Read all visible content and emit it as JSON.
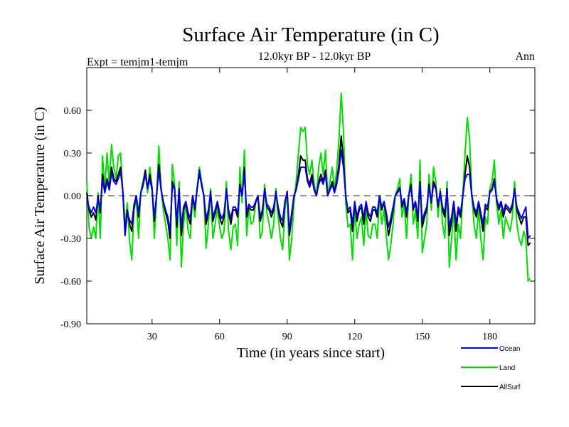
{
  "chart_data": {
    "type": "line",
    "title": "Surface Air Temperature (in C)",
    "subtitle_left": "Expt = temjm1-temjm",
    "subtitle_center": "12.0kyr BP - 12.0kyr BP",
    "subtitle_right": "Ann",
    "xlabel": "Time (in years since start)",
    "ylabel": "Surface Air Temperature (in C)",
    "xlim": [
      1,
      200
    ],
    "ylim": [
      -0.9,
      0.9
    ],
    "xticks": [
      30,
      60,
      90,
      120,
      150,
      180
    ],
    "xtick_labels": [
      "30",
      "60",
      "90",
      "120",
      "150",
      "180"
    ],
    "yticks": [
      -0.9,
      -0.6,
      -0.3,
      0.0,
      0.3,
      0.6
    ],
    "ytick_labels": [
      "-0.90",
      "-0.60",
      "-0.30",
      "0.00",
      "0.30",
      "0.60"
    ],
    "reference_line": 0.0,
    "legend_position": "bottom-right",
    "x_step": 1,
    "series": [
      {
        "name": "Land",
        "color": "#00dd00",
        "values": [
          0.1,
          -0.22,
          -0.3,
          -0.22,
          -0.3,
          0.02,
          -0.3,
          0.28,
          0.05,
          0.3,
          0.08,
          0.36,
          0.2,
          0.12,
          0.28,
          0.3,
          0.02,
          -0.2,
          -0.05,
          -0.32,
          -0.45,
          -0.1,
          -0.02,
          -0.3,
          0.03,
          0.1,
          0.18,
          0.02,
          0.2,
          0.06,
          -0.3,
          -0.02,
          0.35,
          0.05,
          -0.1,
          -0.2,
          -0.3,
          -0.45,
          0.22,
          0.08,
          -0.35,
          0.1,
          -0.5,
          -0.2,
          -0.05,
          -0.25,
          -0.3,
          0.0,
          -0.15,
          0.05,
          0.2,
          0.1,
          0.0,
          -0.37,
          -0.2,
          0.05,
          -0.3,
          -0.2,
          -0.08,
          -0.22,
          -0.3,
          -0.25,
          0.1,
          -0.25,
          -0.38,
          -0.22,
          -0.2,
          -0.35,
          0.2,
          -0.05,
          0.32,
          -0.28,
          -0.08,
          -0.2,
          -0.18,
          -0.05,
          0.0,
          -0.3,
          -0.25,
          0.08,
          -0.12,
          -0.2,
          -0.3,
          -0.2,
          0.05,
          -0.15,
          -0.3,
          -0.38,
          -0.1,
          0.02,
          -0.45,
          -0.3,
          -0.05,
          0.1,
          0.3,
          0.48,
          0.45,
          0.48,
          0.22,
          0.15,
          0.25,
          0.08,
          0.0,
          0.2,
          0.3,
          0.15,
          0.32,
          0.0,
          0.1,
          0.2,
          0.05,
          0.18,
          0.4,
          0.72,
          0.45,
          -0.05,
          -0.22,
          -0.2,
          -0.45,
          -0.1,
          -0.3,
          -0.2,
          -0.15,
          -0.35,
          -0.1,
          -0.28,
          -0.3,
          -0.2,
          -0.2,
          -0.3,
          0.0,
          -0.2,
          -0.1,
          -0.28,
          -0.45,
          -0.35,
          -0.2,
          0.0,
          0.05,
          0.12,
          -0.15,
          -0.05,
          -0.3,
          0.0,
          0.15,
          -0.2,
          -0.1,
          -0.3,
          0.25,
          -0.4,
          -0.3,
          -0.2,
          0.15,
          -0.1,
          0.2,
          0.1,
          -0.15,
          0.05,
          -0.2,
          -0.3,
          0.1,
          -0.5,
          -0.3,
          -0.1,
          -0.45,
          -0.2,
          -0.3,
          0.0,
          0.3,
          0.55,
          0.4,
          0.0,
          -0.2,
          -0.3,
          -0.1,
          -0.3,
          -0.45,
          -0.15,
          -0.2,
          0.05,
          0.1,
          0.25,
          -0.05,
          -0.2,
          -0.1,
          -0.3,
          -0.15,
          -0.2,
          -0.25,
          -0.15,
          0.1,
          -0.2,
          -0.3,
          -0.35,
          -0.25,
          -0.3,
          -0.6,
          -0.58
        ]
      },
      {
        "name": "AllSurf",
        "color": "#000000",
        "values": [
          0.02,
          -0.1,
          -0.15,
          -0.12,
          -0.17,
          0.0,
          -0.12,
          0.15,
          0.03,
          0.12,
          0.05,
          0.2,
          0.12,
          0.1,
          0.15,
          0.2,
          0.03,
          -0.25,
          -0.1,
          -0.2,
          -0.25,
          -0.08,
          0.0,
          -0.15,
          0.02,
          0.08,
          0.18,
          0.05,
          0.15,
          0.05,
          -0.18,
          0.0,
          0.22,
          0.05,
          -0.05,
          -0.12,
          -0.18,
          -0.3,
          0.1,
          0.05,
          -0.22,
          0.05,
          -0.28,
          -0.1,
          -0.05,
          -0.15,
          -0.2,
          0.0,
          -0.1,
          0.05,
          0.15,
          0.08,
          0.0,
          -0.2,
          -0.12,
          0.03,
          -0.18,
          -0.12,
          -0.05,
          -0.15,
          -0.2,
          -0.15,
          0.05,
          -0.12,
          -0.2,
          -0.1,
          -0.1,
          -0.15,
          0.08,
          0.0,
          0.2,
          -0.15,
          -0.08,
          -0.1,
          -0.1,
          -0.05,
          0.0,
          -0.18,
          -0.12,
          0.05,
          -0.08,
          -0.1,
          -0.15,
          -0.1,
          0.03,
          -0.1,
          -0.18,
          -0.22,
          -0.05,
          0.03,
          -0.28,
          -0.15,
          0.0,
          0.05,
          0.15,
          0.28,
          0.25,
          0.25,
          0.12,
          0.08,
          0.15,
          0.05,
          0.0,
          0.1,
          0.15,
          0.1,
          0.18,
          0.0,
          0.05,
          0.1,
          0.03,
          0.1,
          0.22,
          0.42,
          0.25,
          0.0,
          -0.12,
          -0.1,
          -0.25,
          -0.05,
          -0.18,
          -0.1,
          -0.08,
          -0.2,
          -0.05,
          -0.15,
          -0.18,
          -0.1,
          -0.1,
          -0.15,
          0.0,
          -0.1,
          -0.05,
          -0.15,
          -0.28,
          -0.2,
          -0.1,
          0.0,
          0.03,
          0.06,
          -0.08,
          -0.03,
          -0.15,
          0.0,
          0.08,
          -0.1,
          -0.05,
          -0.18,
          0.1,
          -0.22,
          -0.15,
          -0.1,
          0.08,
          -0.05,
          0.1,
          0.06,
          -0.08,
          0.03,
          -0.1,
          -0.15,
          0.05,
          -0.28,
          -0.18,
          -0.05,
          -0.25,
          -0.1,
          -0.15,
          0.0,
          0.15,
          0.28,
          0.2,
          0.0,
          -0.1,
          -0.15,
          -0.05,
          -0.15,
          -0.25,
          -0.08,
          -0.1,
          0.03,
          0.05,
          0.12,
          -0.03,
          -0.1,
          -0.05,
          -0.15,
          -0.08,
          -0.1,
          -0.12,
          -0.08,
          0.05,
          -0.1,
          -0.15,
          -0.2,
          -0.15,
          -0.15,
          -0.35,
          -0.33
        ]
      },
      {
        "name": "Ocean",
        "color": "#0000dd",
        "values": [
          -0.02,
          -0.08,
          -0.12,
          -0.08,
          -0.12,
          -0.02,
          -0.1,
          0.12,
          0.02,
          0.1,
          0.04,
          0.16,
          0.1,
          0.08,
          0.12,
          0.17,
          0.03,
          -0.28,
          -0.12,
          -0.17,
          -0.2,
          -0.06,
          0.0,
          -0.12,
          0.02,
          0.07,
          0.15,
          0.05,
          0.12,
          0.04,
          -0.15,
          0.0,
          0.18,
          0.04,
          -0.04,
          -0.1,
          -0.15,
          -0.25,
          0.08,
          0.04,
          -0.18,
          0.04,
          -0.22,
          -0.08,
          -0.04,
          -0.12,
          -0.16,
          0.0,
          -0.08,
          0.04,
          0.18,
          0.07,
          0.0,
          -0.16,
          -0.1,
          0.02,
          -0.15,
          -0.1,
          -0.04,
          -0.12,
          -0.16,
          -0.12,
          0.04,
          -0.1,
          -0.16,
          -0.08,
          -0.08,
          -0.12,
          0.06,
          0.0,
          0.16,
          -0.12,
          -0.06,
          -0.08,
          -0.08,
          -0.04,
          0.0,
          -0.15,
          -0.1,
          0.04,
          -0.06,
          -0.08,
          -0.12,
          -0.08,
          0.02,
          -0.08,
          -0.15,
          -0.18,
          -0.04,
          0.02,
          -0.25,
          -0.12,
          0.0,
          0.04,
          0.12,
          0.2,
          0.2,
          0.2,
          0.1,
          0.06,
          0.12,
          0.04,
          0.0,
          0.08,
          0.12,
          0.08,
          0.15,
          0.0,
          0.04,
          0.08,
          0.02,
          0.08,
          0.18,
          0.32,
          0.2,
          0.0,
          -0.1,
          -0.08,
          -0.2,
          -0.04,
          -0.15,
          -0.08,
          -0.06,
          -0.16,
          -0.04,
          -0.12,
          -0.15,
          -0.08,
          -0.08,
          -0.12,
          0.0,
          -0.08,
          -0.04,
          -0.12,
          -0.22,
          -0.16,
          -0.08,
          0.0,
          0.02,
          0.05,
          -0.06,
          -0.02,
          -0.12,
          0.0,
          0.06,
          -0.08,
          -0.04,
          -0.15,
          0.08,
          -0.18,
          -0.12,
          -0.08,
          0.06,
          -0.04,
          0.08,
          0.05,
          -0.06,
          0.02,
          -0.08,
          -0.12,
          0.04,
          -0.22,
          -0.15,
          -0.04,
          -0.2,
          -0.08,
          -0.12,
          0.0,
          0.12,
          0.15,
          0.15,
          0.0,
          -0.08,
          -0.12,
          -0.04,
          -0.12,
          -0.2,
          -0.06,
          -0.08,
          0.02,
          0.04,
          0.1,
          -0.02,
          -0.08,
          -0.04,
          -0.12,
          -0.06,
          -0.08,
          -0.1,
          -0.06,
          0.04,
          -0.08,
          -0.12,
          -0.16,
          -0.12,
          -0.08,
          -0.3,
          -0.28
        ]
      }
    ],
    "legend_order": [
      "Ocean",
      "Land",
      "AllSurf"
    ]
  }
}
